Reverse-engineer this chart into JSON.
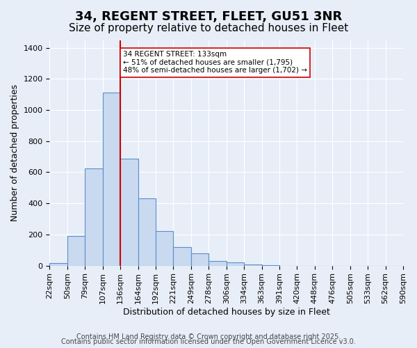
{
  "title": "34, REGENT STREET, FLEET, GU51 3NR",
  "subtitle": "Size of property relative to detached houses in Fleet",
  "xlabel": "Distribution of detached houses by size in Fleet",
  "ylabel": "Number of detached properties",
  "bin_labels": [
    "22sqm",
    "50sqm",
    "79sqm",
    "107sqm",
    "136sqm",
    "164sqm",
    "192sqm",
    "221sqm",
    "249sqm",
    "278sqm",
    "306sqm",
    "334sqm",
    "363sqm",
    "391sqm",
    "420sqm",
    "448sqm",
    "476sqm",
    "505sqm",
    "533sqm",
    "562sqm",
    "590sqm"
  ],
  "bar_heights": [
    15,
    192,
    625,
    1113,
    685,
    430,
    222,
    120,
    80,
    30,
    20,
    5,
    2,
    0,
    0,
    0,
    0,
    0,
    0,
    0
  ],
  "bar_color": "#c9d9f0",
  "bar_edge_color": "#5b8fc9",
  "vline_x": 4,
  "vline_color": "#cc0000",
  "annotation_title": "34 REGENT STREET: 133sqm",
  "annotation_line1": "← 51% of detached houses are smaller (1,795)",
  "annotation_line2": "48% of semi-detached houses are larger (1,702) →",
  "annotation_box_color": "#ffffff",
  "annotation_box_edge": "#cc0000",
  "ylim": [
    0,
    1450
  ],
  "yticks": [
    0,
    200,
    400,
    600,
    800,
    1000,
    1200,
    1400
  ],
  "footer_line1": "Contains HM Land Registry data © Crown copyright and database right 2025.",
  "footer_line2": "Contains public sector information licensed under the Open Government Licence v3.0.",
  "background_color": "#e8eef8",
  "plot_background": "#e8eef8",
  "grid_color": "#ffffff",
  "title_fontsize": 13,
  "subtitle_fontsize": 11,
  "label_fontsize": 9,
  "tick_fontsize": 8,
  "footer_fontsize": 7
}
